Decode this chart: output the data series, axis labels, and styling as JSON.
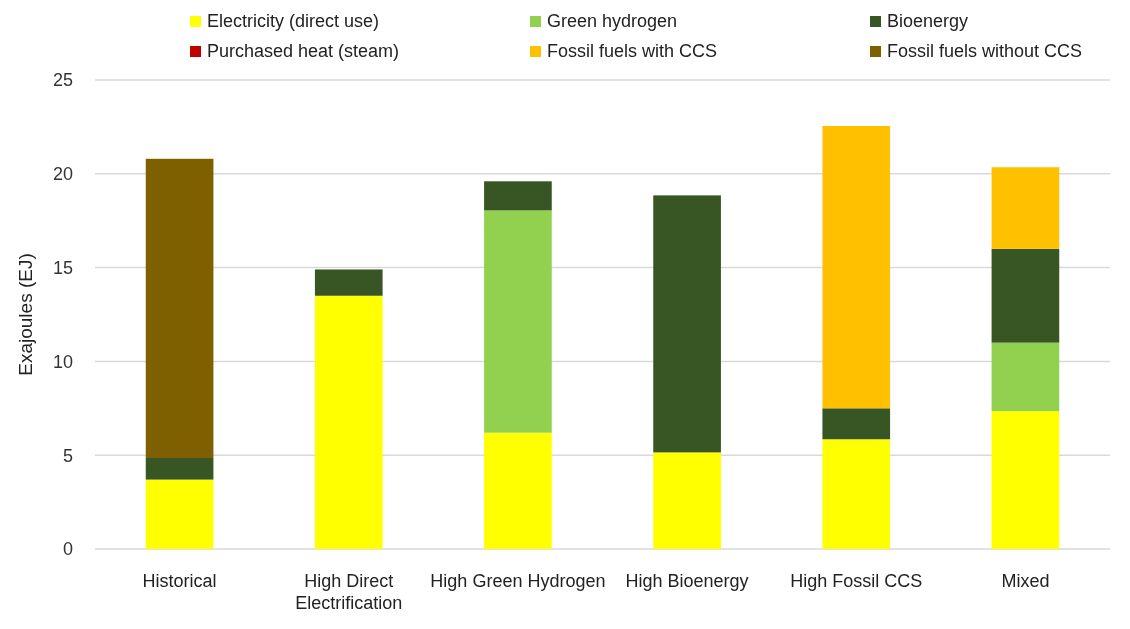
{
  "chart_data": {
    "type": "bar",
    "stacked": true,
    "ylabel": "Exajoules (EJ)",
    "categories": [
      "Historical",
      "High Direct Electrification",
      "High Green Hydrogen",
      "High Bioenergy",
      "High Fossil CCS",
      "Mixed"
    ],
    "series": [
      {
        "name": "Electricity (direct use)",
        "color": "#ffff00",
        "values": [
          3.7,
          13.5,
          6.2,
          5.15,
          5.85,
          7.35
        ]
      },
      {
        "name": "Green hydrogen",
        "color": "#92d050",
        "values": [
          0,
          0,
          11.85,
          0,
          0,
          3.65
        ]
      },
      {
        "name": "Bioenergy",
        "color": "#375623",
        "values": [
          1.15,
          1.4,
          1.55,
          13.7,
          1.65,
          5.0
        ]
      },
      {
        "name": "Purchased heat (steam)",
        "color": "#c00000",
        "values": [
          0,
          0,
          0,
          0,
          0,
          0
        ]
      },
      {
        "name": "Fossil fuels with CCS",
        "color": "#ffc000",
        "values": [
          0,
          0,
          0,
          0,
          15.05,
          4.35
        ]
      },
      {
        "name": "Fossil fuels without CCS",
        "color": "#7f6000",
        "values": [
          15.95,
          0,
          0,
          0,
          0,
          0
        ]
      }
    ],
    "ylim": [
      0,
      25
    ],
    "yticks": [
      0,
      5,
      10,
      15,
      20,
      25
    ],
    "grid": "y",
    "legend": "top"
  }
}
